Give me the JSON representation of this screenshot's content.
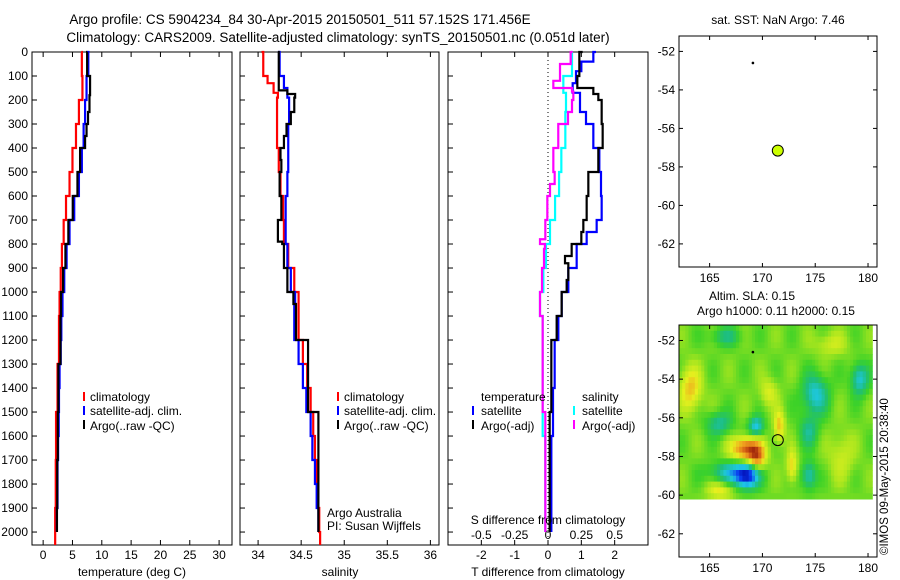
{
  "header": {
    "title_line1": "Argo profile: CS 5904234_84 30-Apr-2015 20150501_511 57.152S 171.456E",
    "title_line2": "Climatology: CARS2009. Satellite-adjusted climatology: synTS_20150501.nc (0.051d later)"
  },
  "credits": {
    "program": "Argo Australia",
    "pi": "PI: Susan Wijffels",
    "copyright": "©IMOS 09-May-2015 20:38:40"
  },
  "colors": {
    "climatology": "#ff0000",
    "satellite": "#0000ff",
    "argo": "#000000",
    "salinity_satellite": "#00ffff",
    "salinity_argo": "#ff00ff",
    "argo_marker": "#ccff00"
  },
  "chart_data": [
    {
      "id": "temperature",
      "type": "line",
      "xlabel": "temperature (deg C)",
      "ylabel": "",
      "xlim": [
        -1.9,
        32.2
      ],
      "ylim": [
        2054,
        0
      ],
      "xticks": [
        "0",
        "5",
        "10",
        "15",
        "20",
        "25",
        "30"
      ],
      "yticks": [
        "0",
        "100",
        "200",
        "300",
        "400",
        "500",
        "600",
        "700",
        "800",
        "900",
        "1000",
        "1100",
        "1200",
        "1300",
        "1400",
        "1500",
        "1600",
        "1700",
        "1800",
        "1900",
        "2000"
      ],
      "legend": [
        "climatology",
        "satellite-adj. clim.",
        "Argo(..raw -QC)"
      ],
      "series": [
        {
          "name": "climatology",
          "color": "#ff0000",
          "depth": [
            0,
            100,
            200,
            300,
            400,
            500,
            600,
            700,
            800,
            900,
            1000,
            1100,
            1200,
            1300,
            1500,
            1700,
            1900,
            2054
          ],
          "values": [
            6.5,
            6.6,
            6.7,
            6.1,
            5.6,
            5.0,
            4.5,
            3.9,
            3.5,
            3.2,
            3.0,
            2.8,
            2.7,
            2.7,
            2.45,
            2.2,
            2.15,
            2.05
          ]
        },
        {
          "name": "satellite-adj. clim.",
          "color": "#0000ff",
          "depth": [
            0,
            100,
            200,
            300,
            400,
            500,
            600,
            700,
            800,
            900,
            1000,
            1100,
            1200,
            1300,
            1400,
            1500,
            1600,
            1700,
            1800,
            1900,
            2000
          ],
          "values": [
            7.9,
            7.7,
            7.4,
            7.15,
            6.9,
            6.6,
            6.1,
            5.3,
            4.5,
            4.0,
            3.6,
            3.3,
            3.1,
            3.0,
            2.8,
            2.7,
            2.65,
            2.55,
            2.45,
            2.45,
            2.35
          ]
        },
        {
          "name": "Argo(..raw -QC)",
          "color": "#000000",
          "depth": [
            0,
            100,
            180,
            250,
            300,
            350,
            400,
            500,
            600,
            700,
            800,
            900,
            1000,
            1100,
            1300,
            1500,
            1700,
            1900,
            2000
          ],
          "values": [
            7.55,
            7.5,
            8.0,
            7.9,
            7.65,
            7.4,
            7.15,
            6.3,
            5.85,
            5.05,
            4.3,
            3.8,
            3.4,
            3.05,
            2.95,
            2.6,
            2.5,
            2.4,
            2.35
          ]
        }
      ]
    },
    {
      "id": "salinity",
      "type": "line",
      "xlabel": "salinity",
      "xlim": [
        33.79,
        36.1
      ],
      "ylim": [
        2054,
        0
      ],
      "xticks": [
        "34",
        "34.5",
        "35",
        "35.5",
        "36"
      ],
      "legend": [
        "climatology",
        "satellite-adj. clim.",
        "Argo(..raw -QC)"
      ],
      "series": [
        {
          "name": "climatology",
          "color": "#ff0000",
          "depth": [
            0,
            100,
            130,
            170,
            190,
            300,
            400,
            500,
            600,
            700,
            800,
            900,
            1000,
            1050,
            1200,
            1300,
            1400,
            1500,
            1600,
            1700,
            1800,
            1900,
            2000,
            2054
          ],
          "values": [
            34.04,
            34.06,
            34.11,
            34.18,
            34.23,
            34.22,
            34.22,
            34.24,
            34.26,
            34.29,
            34.3,
            34.35,
            34.42,
            34.47,
            34.47,
            34.52,
            34.57,
            34.61,
            34.64,
            34.66,
            34.68,
            34.7,
            34.71,
            34.72
          ]
        },
        {
          "name": "satellite-adj. clim.",
          "color": "#0000ff",
          "depth": [
            0,
            100,
            150,
            190,
            200,
            300,
            400,
            500,
            600,
            700,
            800,
            900,
            1000,
            1050,
            1200,
            1300,
            1400,
            1500,
            1600,
            1700,
            1800,
            1900,
            2000
          ],
          "values": [
            34.23,
            34.25,
            34.3,
            34.34,
            34.36,
            34.36,
            34.35,
            34.35,
            34.34,
            34.32,
            34.32,
            34.34,
            34.38,
            34.43,
            34.42,
            34.47,
            34.52,
            34.56,
            34.61,
            34.63,
            34.66,
            34.68,
            34.7
          ]
        },
        {
          "name": "Argo(..raw -QC)",
          "color": "#000000",
          "depth": [
            0,
            80,
            160,
            175,
            190,
            250,
            300,
            350,
            400,
            450,
            500,
            600,
            700,
            790,
            800,
            900,
            1000,
            1050,
            1200,
            1500,
            2000
          ],
          "values": [
            34.23,
            34.24,
            34.24,
            34.34,
            34.43,
            34.42,
            34.38,
            34.33,
            34.3,
            34.26,
            34.27,
            34.25,
            34.27,
            34.23,
            34.28,
            34.3,
            34.34,
            34.41,
            34.44,
            34.58,
            34.7
          ]
        }
      ]
    },
    {
      "id": "difference",
      "type": "line",
      "xlabel": "T difference from climatology",
      "xlabel_top": "S difference from climatology",
      "xlim": [
        -3.0,
        3.0
      ],
      "xlim_salinity": [
        -0.75,
        0.75
      ],
      "ylim": [
        2054,
        0
      ],
      "xticks": [
        "-2",
        "-1",
        "0",
        "1",
        "2"
      ],
      "xticks_salinity": [
        "-0.5",
        "-0.25",
        "0",
        "0.25",
        "0.5"
      ],
      "legend_headers": [
        "temperature",
        "salinity"
      ],
      "legend": [
        "satellite",
        "Argo(-adj)",
        "satellite",
        "Argo(-adj)"
      ],
      "series": [
        {
          "name": "T satellite",
          "axis": "T",
          "color": "#0000ff",
          "depth": [
            0,
            40,
            80,
            130,
            170,
            250,
            300,
            400,
            500,
            600,
            700,
            750,
            800,
            900,
            1000,
            1100,
            1200,
            1400,
            1600,
            2000
          ],
          "values": [
            1.44,
            1.36,
            1.0,
            0.84,
            0.74,
            0.96,
            1.14,
            1.36,
            1.54,
            1.59,
            1.61,
            1.46,
            1.16,
            0.86,
            0.61,
            0.41,
            0.31,
            0.2,
            0.15,
            0.1
          ]
        },
        {
          "name": "T Argo(-adj)",
          "axis": "T",
          "color": "#000000",
          "depth": [
            0,
            100,
            150,
            175,
            200,
            300,
            400,
            500,
            600,
            700,
            750,
            800,
            850,
            880,
            950,
            1000,
            1100,
            1200,
            1500,
            2000
          ],
          "values": [
            1.04,
            0.94,
            0.88,
            1.36,
            1.51,
            1.61,
            1.64,
            1.51,
            1.21,
            1.16,
            1.06,
            1.0,
            0.71,
            0.51,
            0.61,
            0.56,
            0.41,
            0.26,
            0.1,
            0.05
          ]
        },
        {
          "name": "S satellite",
          "axis": "S",
          "color": "#00ffff",
          "depth": [
            0,
            100,
            170,
            250,
            400,
            500,
            600,
            700,
            800,
            900,
            1000,
            1100,
            1600,
            2000
          ],
          "values": [
            0.185,
            0.18,
            0.115,
            0.135,
            0.13,
            0.1,
            0.083,
            0.053,
            0.015,
            -0.015,
            -0.035,
            -0.06,
            -0.04,
            -0.02
          ]
        },
        {
          "name": "S Argo(-adj)",
          "axis": "S",
          "color": "#ff00ff",
          "depth": [
            0,
            50,
            120,
            150,
            165,
            200,
            250,
            300,
            400,
            500,
            550,
            600,
            700,
            780,
            800,
            820,
            900,
            1000,
            1100,
            1500,
            2000
          ],
          "values": [
            0.185,
            0.17,
            0.09,
            0.04,
            0.18,
            0.19,
            0.18,
            0.15,
            0.077,
            0.04,
            0.05,
            0.015,
            -0.005,
            -0.02,
            -0.06,
            -0.023,
            -0.03,
            -0.045,
            -0.06,
            -0.04,
            -0.02
          ]
        }
      ]
    },
    {
      "id": "sst_map",
      "type": "scatter",
      "title": "sat. SST: NaN Argo: 7.46",
      "xlim": [
        162.1,
        180.85
      ],
      "ylim": [
        -63.2,
        -51.2
      ],
      "xticks": [
        "165",
        "170",
        "175",
        "180"
      ],
      "yticks": [
        "-52",
        "-54",
        "-56",
        "-58",
        "-60",
        "-62"
      ],
      "points": [
        {
          "name": "argo-float",
          "lon": 171.456,
          "lat": -57.152
        },
        {
          "name": "previous-position",
          "lon": 169.1,
          "lat": -52.6
        }
      ]
    },
    {
      "id": "sla_map",
      "type": "heatmap",
      "title_line1": "Altim. SLA: 0.15",
      "title_line2": "Argo h1000: 0.11 h2000: 0.15",
      "xlim": [
        162.1,
        180.85
      ],
      "ylim": [
        -63.2,
        -51.2
      ],
      "data_extent": {
        "lon": [
          162.1,
          180.2
        ],
        "lat": [
          -60.05,
          -51.2
        ]
      },
      "xticks": [
        "165",
        "170",
        "175",
        "180"
      ],
      "yticks": [
        "-52",
        "-54",
        "-56",
        "-58",
        "-60",
        "-62"
      ],
      "base_value": 0.05,
      "features": [
        {
          "lon": 168.5,
          "lat": -57.6,
          "value": 0.42,
          "rlon": 1.4,
          "rlat": 0.6
        },
        {
          "lon": 169.5,
          "lat": -58.1,
          "value": 0.3,
          "rlon": 0.8,
          "rlat": 0.6
        },
        {
          "lon": 168.5,
          "lat": -59.05,
          "value": -0.5,
          "rlon": 1.1,
          "rlat": 0.6
        },
        {
          "lon": 167.0,
          "lat": -58.8,
          "value": -0.25,
          "rlon": 2.0,
          "rlat": 0.5
        },
        {
          "lon": 169.4,
          "lat": -56.45,
          "value": -0.3,
          "rlon": 0.7,
          "rlat": 0.5
        },
        {
          "lon": 165.9,
          "lat": -56.3,
          "value": -0.2,
          "rlon": 1.2,
          "rlat": 0.6
        },
        {
          "lon": 171.6,
          "lat": -56.45,
          "value": 0.25,
          "rlon": 0.5,
          "rlat": 0.8
        },
        {
          "lon": 163.2,
          "lat": -54.5,
          "value": 0.25,
          "rlon": 1.0,
          "rlat": 1.1
        },
        {
          "lon": 175.0,
          "lat": -54.8,
          "value": -0.28,
          "rlon": 1.2,
          "rlat": 1.0
        },
        {
          "lon": 174.4,
          "lat": -59.0,
          "value": -0.25,
          "rlon": 0.7,
          "rlat": 0.7
        },
        {
          "lon": 172.8,
          "lat": -58.5,
          "value": 0.22,
          "rlon": 0.5,
          "rlat": 0.8
        },
        {
          "lon": 179.2,
          "lat": -54.0,
          "value": -0.28,
          "rlon": 0.8,
          "rlat": 0.8
        },
        {
          "lon": 174.4,
          "lat": -56.7,
          "value": -0.18,
          "rlon": 0.9,
          "rlat": 0.8
        },
        {
          "lon": 170.6,
          "lat": -54.7,
          "value": 0.15,
          "rlon": 0.8,
          "rlat": 0.7
        },
        {
          "lon": 177.5,
          "lat": -58.0,
          "value": 0.12,
          "rlon": 1.2,
          "rlat": 1.2
        },
        {
          "lon": 166.5,
          "lat": -51.8,
          "value": -0.15,
          "rlon": 1.5,
          "rlat": 0.5
        },
        {
          "lon": 176.5,
          "lat": -52.2,
          "value": 0.12,
          "rlon": 1.5,
          "rlat": 0.6
        },
        {
          "lon": 166.0,
          "lat": -59.8,
          "value": 0.18,
          "rlon": 1.2,
          "rlat": 0.4
        }
      ],
      "points": [
        {
          "name": "argo-float",
          "lon": 171.456,
          "lat": -57.152
        },
        {
          "name": "previous-position",
          "lon": 169.1,
          "lat": -52.6
        }
      ]
    }
  ]
}
